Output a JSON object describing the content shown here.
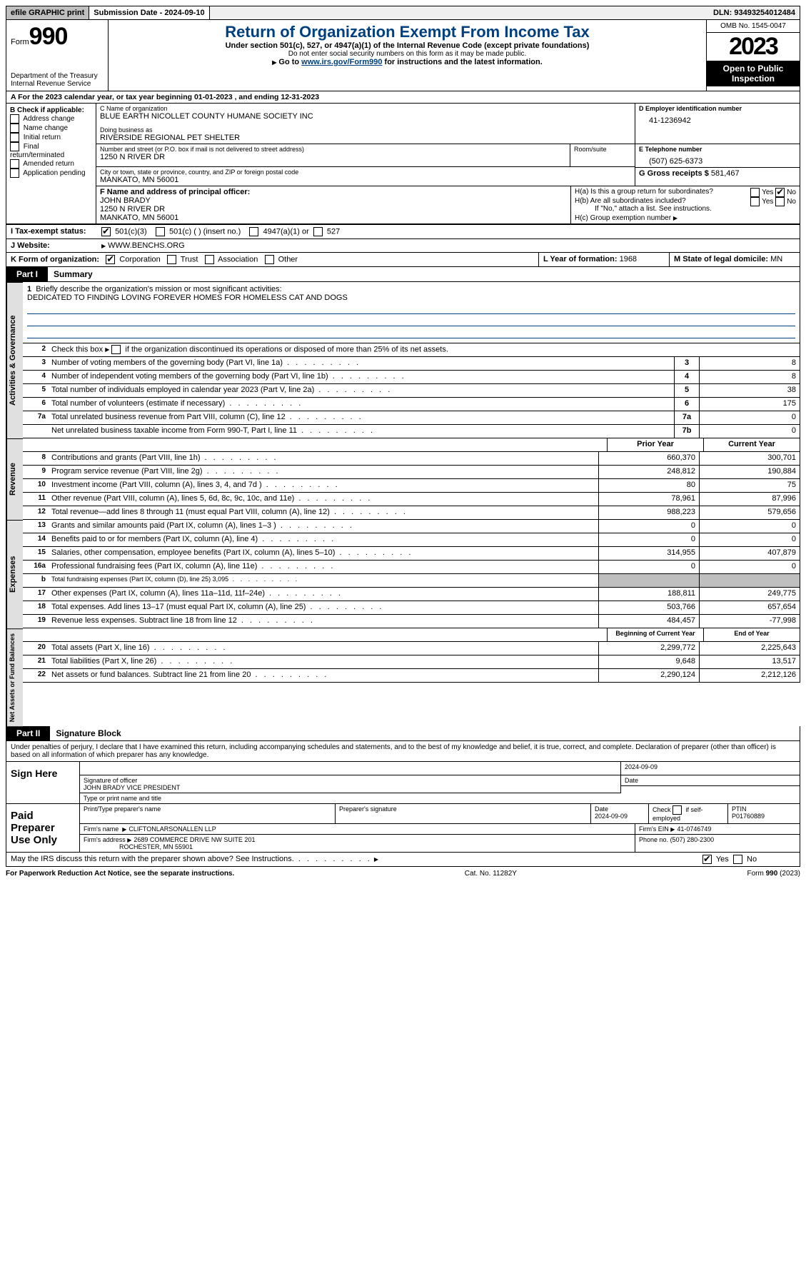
{
  "top": {
    "efile": "efile GRAPHIC print",
    "submission_label": "Submission Date - 2024-09-10",
    "dln": "DLN: 93493254012484"
  },
  "header": {
    "form_prefix": "Form",
    "form_num": "990",
    "dept": "Department of the Treasury",
    "irs": "Internal Revenue Service",
    "title": "Return of Organization Exempt From Income Tax",
    "sub": "Under section 501(c), 527, or 4947(a)(1) of the Internal Revenue Code (except private foundations)",
    "sub2": "Do not enter social security numbers on this form as it may be made public.",
    "goto_prefix": "Go to ",
    "goto_link": "www.irs.gov/Form990",
    "goto_suffix": " for instructions and the latest information.",
    "omb": "OMB No. 1545-0047",
    "year": "2023",
    "open": "Open to Public Inspection"
  },
  "year_line": "For the 2023 calendar year, or tax year beginning 01-01-2023   , and ending 12-31-2023",
  "box_b": {
    "label": "B Check if applicable:",
    "items": [
      "Address change",
      "Name change",
      "Initial return",
      "Final return/terminated",
      "Amended return",
      "Application pending"
    ]
  },
  "box_c": {
    "name_label": "C Name of organization",
    "name": "BLUE EARTH NICOLLET COUNTY HUMANE SOCIETY INC",
    "dba_label": "Doing business as",
    "dba": "RIVERSIDE REGIONAL PET SHELTER",
    "addr_label": "Number and street (or P.O. box if mail is not delivered to street address)",
    "addr": "1250 N RIVER DR",
    "room_label": "Room/suite",
    "city_label": "City or town, state or province, country, and ZIP or foreign postal code",
    "city": "MANKATO, MN  56001"
  },
  "box_d": {
    "label": "D Employer identification number",
    "val": "41-1236942"
  },
  "box_e": {
    "label": "E Telephone number",
    "val": "(507) 625-6373"
  },
  "box_g": {
    "label": "G Gross receipts $",
    "val": "581,467"
  },
  "box_f": {
    "label": "F  Name and address of principal officer:",
    "name": "JOHN BRADY",
    "addr1": "1250 N RIVER DR",
    "addr2": "MANKATO, MN  56001"
  },
  "box_h": {
    "ha": "H(a)  Is this a group return for subordinates?",
    "hb": "H(b)  Are all subordinates included?",
    "hb_note": "If \"No,\" attach a list. See instructions.",
    "hc": "H(c)  Group exemption number",
    "yes": "Yes",
    "no": "No"
  },
  "box_i": {
    "label": "I   Tax-exempt status:",
    "o1": "501(c)(3)",
    "o2": "501(c) (  ) (insert no.)",
    "o3": "4947(a)(1) or",
    "o4": "527"
  },
  "box_j": {
    "label": "J   Website:",
    "val": "WWW.BENCHS.ORG"
  },
  "box_k": {
    "label": "K Form of organization:",
    "o1": "Corporation",
    "o2": "Trust",
    "o3": "Association",
    "o4": "Other"
  },
  "box_l": {
    "label": "L Year of formation:",
    "val": "1968"
  },
  "box_m": {
    "label": "M State of legal domicile:",
    "val": "MN"
  },
  "part1": {
    "label": "Part I",
    "title": "Summary"
  },
  "mission": {
    "q": "Briefly describe the organization's mission or most significant activities:",
    "text": "DEDICATED TO FINDING LOVING FOREVER HOMES FOR HOMELESS CAT AND DOGS"
  },
  "line2": "Check this box       if the organization discontinued its operations or disposed of more than 25% of its net assets.",
  "gov_lines": [
    {
      "n": "3",
      "d": "Number of voting members of the governing body (Part VI, line 1a)",
      "box": "3",
      "v": "8"
    },
    {
      "n": "4",
      "d": "Number of independent voting members of the governing body (Part VI, line 1b)",
      "box": "4",
      "v": "8"
    },
    {
      "n": "5",
      "d": "Total number of individuals employed in calendar year 2023 (Part V, line 2a)",
      "box": "5",
      "v": "38"
    },
    {
      "n": "6",
      "d": "Total number of volunteers (estimate if necessary)",
      "box": "6",
      "v": "175"
    },
    {
      "n": "7a",
      "d": "Total unrelated business revenue from Part VIII, column (C), line 12",
      "box": "7a",
      "v": "0"
    },
    {
      "n": "",
      "d": "Net unrelated business taxable income from Form 990-T, Part I, line 11",
      "box": "7b",
      "v": "0"
    }
  ],
  "col_heads": {
    "prior": "Prior Year",
    "current": "Current Year"
  },
  "revenue": [
    {
      "n": "8",
      "d": "Contributions and grants (Part VIII, line 1h)",
      "p": "660,370",
      "c": "300,701"
    },
    {
      "n": "9",
      "d": "Program service revenue (Part VIII, line 2g)",
      "p": "248,812",
      "c": "190,884"
    },
    {
      "n": "10",
      "d": "Investment income (Part VIII, column (A), lines 3, 4, and 7d )",
      "p": "80",
      "c": "75"
    },
    {
      "n": "11",
      "d": "Other revenue (Part VIII, column (A), lines 5, 6d, 8c, 9c, 10c, and 11e)",
      "p": "78,961",
      "c": "87,996"
    },
    {
      "n": "12",
      "d": "Total revenue—add lines 8 through 11 (must equal Part VIII, column (A), line 12)",
      "p": "988,223",
      "c": "579,656"
    }
  ],
  "expenses": [
    {
      "n": "13",
      "d": "Grants and similar amounts paid (Part IX, column (A), lines 1–3 )",
      "p": "0",
      "c": "0"
    },
    {
      "n": "14",
      "d": "Benefits paid to or for members (Part IX, column (A), line 4)",
      "p": "0",
      "c": "0"
    },
    {
      "n": "15",
      "d": "Salaries, other compensation, employee benefits (Part IX, column (A), lines 5–10)",
      "p": "314,955",
      "c": "407,879"
    },
    {
      "n": "16a",
      "d": "Professional fundraising fees (Part IX, column (A), line 11e)",
      "p": "0",
      "c": "0"
    },
    {
      "n": "b",
      "d": "Total fundraising expenses (Part IX, column (D), line 25) 3,095",
      "p": "",
      "c": "",
      "shade": true,
      "small": true
    },
    {
      "n": "17",
      "d": "Other expenses (Part IX, column (A), lines 11a–11d, 11f–24e)",
      "p": "188,811",
      "c": "249,775"
    },
    {
      "n": "18",
      "d": "Total expenses. Add lines 13–17 (must equal Part IX, column (A), line 25)",
      "p": "503,766",
      "c": "657,654"
    },
    {
      "n": "19",
      "d": "Revenue less expenses. Subtract line 18 from line 12",
      "p": "484,457",
      "c": "-77,998"
    }
  ],
  "net_heads": {
    "begin": "Beginning of Current Year",
    "end": "End of Year"
  },
  "net": [
    {
      "n": "20",
      "d": "Total assets (Part X, line 16)",
      "p": "2,299,772",
      "c": "2,225,643"
    },
    {
      "n": "21",
      "d": "Total liabilities (Part X, line 26)",
      "p": "9,648",
      "c": "13,517"
    },
    {
      "n": "22",
      "d": "Net assets or fund balances. Subtract line 21 from line 20",
      "p": "2,290,124",
      "c": "2,212,126"
    }
  ],
  "vtabs": {
    "gov": "Activities & Governance",
    "rev": "Revenue",
    "exp": "Expenses",
    "net": "Net Assets or Fund Balances"
  },
  "part2": {
    "label": "Part II",
    "title": "Signature Block"
  },
  "perjury": "Under penalties of perjury, I declare that I have examined this return, including accompanying schedules and statements, and to the best of my knowledge and belief, it is true, correct, and complete. Declaration of preparer (other than officer) is based on all information of which preparer has any knowledge.",
  "sign": {
    "here": "Sign Here",
    "sig_label": "Signature of officer",
    "officer": "JOHN BRADY VICE PRESIDENT",
    "name_label": "Type or print name and title",
    "date_label": "Date",
    "date": "2024-09-09"
  },
  "paid": {
    "label": "Paid Preparer Use Only",
    "name_label": "Print/Type preparer's name",
    "sig_label": "Preparer's signature",
    "date_label": "Date",
    "date": "2024-09-09",
    "check_label": "Check         if self-employed",
    "ptin_label": "PTIN",
    "ptin": "P01760889",
    "firm_name_label": "Firm's name",
    "firm_name": "CLIFTONLARSONALLEN LLP",
    "firm_ein_label": "Firm's EIN",
    "firm_ein": "41-0746749",
    "firm_addr_label": "Firm's address",
    "firm_addr1": "2689 COMMERCE DRIVE NW SUITE 201",
    "firm_addr2": "ROCHESTER, MN  55901",
    "phone_label": "Phone no.",
    "phone": "(507) 280-2300"
  },
  "discuss": {
    "q": "May the IRS discuss this return with the preparer shown above? See Instructions.",
    "yes": "Yes",
    "no": "No"
  },
  "footer": {
    "left": "For Paperwork Reduction Act Notice, see the separate instructions.",
    "mid": "Cat. No. 11282Y",
    "right_prefix": "Form ",
    "right_form": "990",
    "right_suffix": " (2023)"
  }
}
